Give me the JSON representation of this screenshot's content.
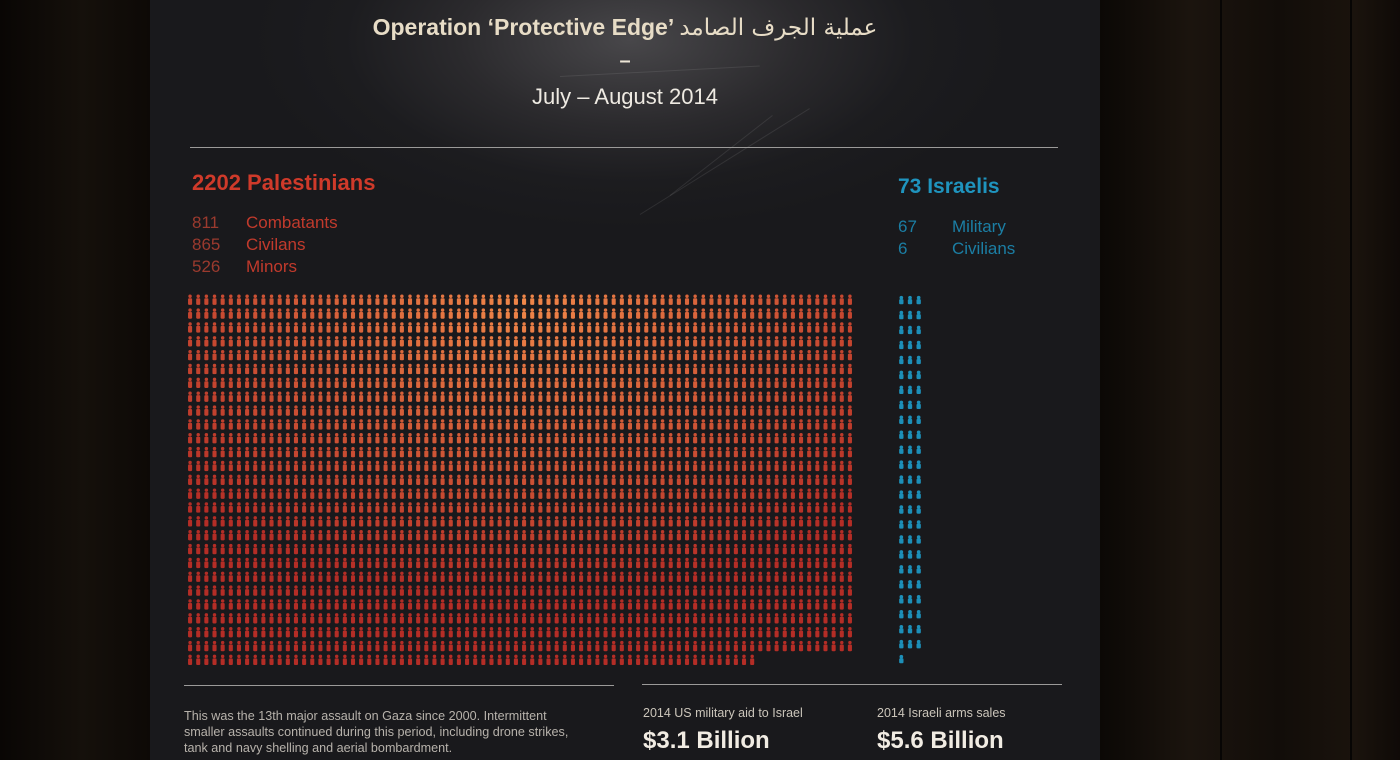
{
  "poster": {
    "title_en": "Operation ‘Protective Edge’",
    "title_ar": "عملية الجرف الصامد",
    "dash": "–",
    "date": "July – August 2014"
  },
  "palestinians": {
    "total_label": "2202 Palestinians",
    "total": 2202,
    "breakdown": [
      {
        "num": "811",
        "label": "Combatants"
      },
      {
        "num": "865",
        "label": "Civilans"
      },
      {
        "num": "526",
        "label": "Minors"
      }
    ],
    "color": "#c9372a"
  },
  "israelis": {
    "total_label": "73 Israelis",
    "total": 73,
    "breakdown": [
      {
        "num": "67",
        "label": "Military"
      },
      {
        "num": "6",
        "label": "Civilians"
      }
    ],
    "color": "#1d8fb8"
  },
  "footer": {
    "note": "This was the 13th major assault on Gaza since 2000. Intermittent smaller assaults continued during this period, including drone strikes, tank and navy shelling and aerial bombardment.",
    "aid_label": "2014 US military aid to Israel",
    "aid_value": "$3.1 Billion",
    "sales_label": "2014 Israeli arms sales",
    "sales_value": "$5.6 Billion"
  }
}
